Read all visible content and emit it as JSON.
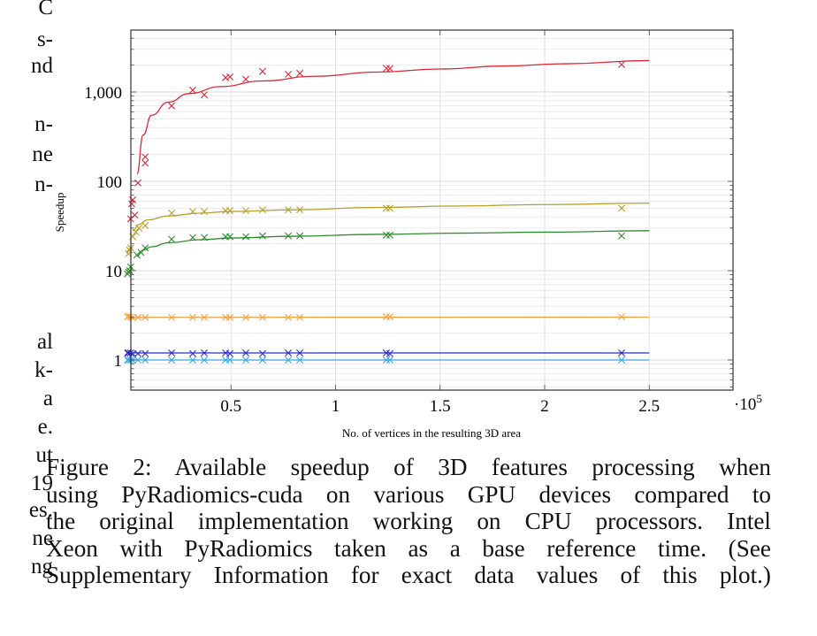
{
  "left_column_fragments": [
    "C",
    "s-",
    "nd",
    "n-",
    "ne",
    "n-",
    "al",
    "k-",
    "a",
    "e.",
    "ut",
    "19",
    "es.",
    "ne",
    "ng"
  ],
  "caption": {
    "lines": [
      "Figure 2:  Available speedup of 3D features processing when",
      "using PyRadiomics-cuda on various GPU devices compared to",
      "the original implementation working on CPU processors. Intel",
      "Xeon with PyRadiomics taken as a base reference time.  (See",
      "Supplementary Information for exact data values of this plot.)"
    ]
  },
  "chart_data": {
    "type": "scatter",
    "title": "",
    "xlabel": "No. of vertices in the resulting 3D area",
    "ylabel": "Speedup",
    "x_scale_label": "·10^5",
    "x_scale_base": "10",
    "x_scale_exp": "5",
    "xscale": "linear",
    "yscale": "log",
    "xlim": [
      0,
      2.9
    ],
    "ylim": [
      0.5,
      5000
    ],
    "xticks": [
      0.5,
      1,
      1.5,
      2,
      2.5
    ],
    "xtick_labels": [
      "0.5",
      "1",
      "1.5",
      "2",
      "2.5"
    ],
    "yticks": [
      1,
      10,
      100,
      1000
    ],
    "ytick_labels": [
      "1",
      "10",
      "100",
      "1,000"
    ],
    "grid": true,
    "legend": "none",
    "series": [
      {
        "name": "red",
        "color": "#d9283a",
        "points": [
          [
            0.02,
            38
          ],
          [
            0.04,
            42
          ],
          [
            0.025,
            56
          ],
          [
            0.03,
            62
          ],
          [
            0.055,
            96
          ],
          [
            0.09,
            160
          ],
          [
            0.09,
            188
          ],
          [
            0.216,
            700
          ],
          [
            0.317,
            1050
          ],
          [
            0.372,
            930
          ],
          [
            0.474,
            1450
          ],
          [
            0.495,
            1480
          ],
          [
            0.571,
            1390
          ],
          [
            0.651,
            1700
          ],
          [
            0.774,
            1580
          ],
          [
            0.829,
            1620
          ],
          [
            1.243,
            1840
          ],
          [
            1.26,
            1830
          ],
          [
            2.368,
            2030
          ]
        ],
        "fit": {
          "x": [
            0.05,
            0.08,
            0.12,
            0.2,
            0.3,
            0.45,
            0.65,
            0.9,
            1.2,
            1.5,
            1.8,
            2.1,
            2.5
          ],
          "y": [
            120,
            330,
            550,
            770,
            960,
            1150,
            1330,
            1500,
            1670,
            1810,
            1950,
            2070,
            2250
          ]
        }
      },
      {
        "name": "olive",
        "color": "#b5a02e",
        "points": [
          [
            0.01,
            15.5
          ],
          [
            0.015,
            17
          ],
          [
            0.02,
            18
          ],
          [
            0.03,
            24
          ],
          [
            0.045,
            27
          ],
          [
            0.06,
            30
          ],
          [
            0.09,
            32
          ],
          [
            0.216,
            44
          ],
          [
            0.317,
            46
          ],
          [
            0.372,
            46
          ],
          [
            0.474,
            47
          ],
          [
            0.495,
            47
          ],
          [
            0.571,
            47
          ],
          [
            0.651,
            48
          ],
          [
            0.774,
            48
          ],
          [
            0.829,
            48
          ],
          [
            1.243,
            50
          ],
          [
            1.26,
            50
          ],
          [
            2.368,
            50
          ]
        ],
        "fit": {
          "x": [
            0.03,
            0.06,
            0.1,
            0.2,
            0.35,
            0.5,
            0.8,
            1.2,
            1.6,
            2.0,
            2.5
          ],
          "y": [
            28,
            33,
            37,
            41,
            44,
            46,
            48,
            51,
            53,
            55,
            57
          ]
        }
      },
      {
        "name": "green",
        "color": "#2e8b2e",
        "points": [
          [
            0.005,
            9.2
          ],
          [
            0.01,
            9.6
          ],
          [
            0.015,
            10
          ],
          [
            0.02,
            11
          ],
          [
            0.05,
            15
          ],
          [
            0.07,
            16
          ],
          [
            0.09,
            18
          ],
          [
            0.216,
            22.5
          ],
          [
            0.317,
            23.5
          ],
          [
            0.372,
            23.5
          ],
          [
            0.474,
            24
          ],
          [
            0.495,
            24
          ],
          [
            0.571,
            24
          ],
          [
            0.651,
            24.5
          ],
          [
            0.774,
            24.5
          ],
          [
            0.829,
            24.5
          ],
          [
            1.243,
            25
          ],
          [
            1.26,
            25
          ],
          [
            2.368,
            24.5
          ]
        ],
        "fit": {
          "x": [
            0.05,
            0.08,
            0.12,
            0.2,
            0.35,
            0.5,
            0.8,
            1.2,
            1.6,
            2.0,
            2.5
          ],
          "y": [
            14.5,
            17,
            18.5,
            20.5,
            22.2,
            23.2,
            24.3,
            25.5,
            26.3,
            27,
            28
          ]
        }
      },
      {
        "name": "orange",
        "color": "#f5a142",
        "points": [
          [
            0.005,
            3.05
          ],
          [
            0.01,
            3.1
          ],
          [
            0.02,
            3.05
          ],
          [
            0.03,
            3.0
          ],
          [
            0.055,
            3.0
          ],
          [
            0.09,
            3.0
          ],
          [
            0.216,
            3.0
          ],
          [
            0.317,
            3.0
          ],
          [
            0.372,
            3.0
          ],
          [
            0.474,
            3.0
          ],
          [
            0.495,
            3.0
          ],
          [
            0.571,
            3.0
          ],
          [
            0.651,
            3.0
          ],
          [
            0.774,
            3.0
          ],
          [
            0.829,
            3.0
          ],
          [
            1.243,
            3.05
          ],
          [
            1.26,
            3.05
          ],
          [
            2.368,
            3.05
          ]
        ],
        "fit": {
          "x": [
            0.01,
            2.5
          ],
          "y": [
            3.0,
            3.02
          ]
        }
      },
      {
        "name": "blue",
        "color": "#2a2ac8",
        "points": [
          [
            0.005,
            1.2
          ],
          [
            0.01,
            1.2
          ],
          [
            0.02,
            1.2
          ],
          [
            0.03,
            1.18
          ],
          [
            0.055,
            1.18
          ],
          [
            0.09,
            1.18
          ],
          [
            0.216,
            1.2
          ],
          [
            0.317,
            1.18
          ],
          [
            0.372,
            1.2
          ],
          [
            0.474,
            1.2
          ],
          [
            0.495,
            1.18
          ],
          [
            0.571,
            1.2
          ],
          [
            0.651,
            1.18
          ],
          [
            0.774,
            1.2
          ],
          [
            0.829,
            1.2
          ],
          [
            1.243,
            1.2
          ],
          [
            1.26,
            1.18
          ],
          [
            2.368,
            1.2
          ]
        ],
        "fit": {
          "x": [
            0.01,
            2.5
          ],
          "y": [
            1.2,
            1.2
          ]
        }
      },
      {
        "name": "cyan",
        "color": "#3aa8e0",
        "points": [
          [
            0.005,
            1.0
          ],
          [
            0.01,
            1.0
          ],
          [
            0.02,
            1.0
          ],
          [
            0.03,
            1.0
          ],
          [
            0.055,
            1.0
          ],
          [
            0.09,
            1.0
          ],
          [
            0.216,
            1.0
          ],
          [
            0.317,
            1.0
          ],
          [
            0.372,
            1.0
          ],
          [
            0.474,
            1.0
          ],
          [
            0.495,
            1.0
          ],
          [
            0.571,
            1.0
          ],
          [
            0.651,
            1.0
          ],
          [
            0.774,
            1.0
          ],
          [
            0.829,
            1.0
          ],
          [
            1.243,
            1.0
          ],
          [
            1.26,
            1.0
          ],
          [
            2.368,
            1.0
          ]
        ],
        "fit": {
          "x": [
            0.01,
            2.5
          ],
          "y": [
            1.0,
            1.0
          ]
        }
      }
    ]
  }
}
